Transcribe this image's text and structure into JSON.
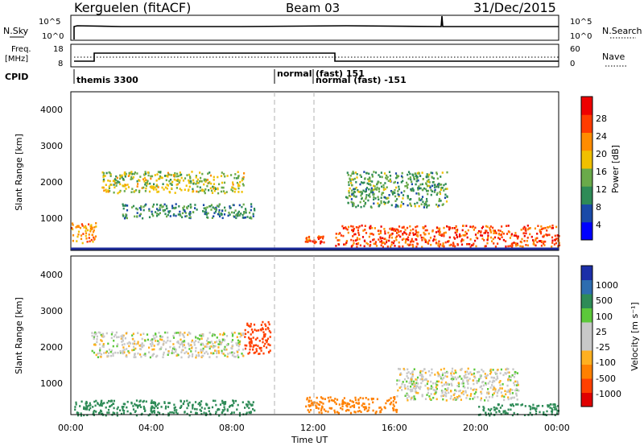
{
  "header": {
    "station": "Kerguelen (fitACF)",
    "beam": "Beam 03",
    "date": "31/Dec/2015"
  },
  "panels": {
    "nsky": {
      "label": "N.Sky",
      "ticks": [
        "10^5",
        "10^0"
      ],
      "right_label": "N.Search",
      "right_ticks": [
        "10^5",
        "10^0"
      ]
    },
    "freq": {
      "label_1": "Freq.",
      "label_2": "[MHz]",
      "ticks": [
        "18",
        "8"
      ],
      "right_label": "Nave",
      "right_ticks": [
        "60",
        "0"
      ]
    },
    "cpid": {
      "label": "CPID",
      "segments": [
        {
          "name": "themis 3300",
          "start_h": 0
        },
        {
          "name": "normal",
          "start_h": 10.0
        },
        {
          "name": "(fast) 151",
          "start_h": 12.0
        },
        {
          "name": "normal (fast) -151",
          "start_h": 12.0
        }
      ]
    }
  },
  "colorbars": {
    "power": {
      "title": "Power [dB]",
      "colors": [
        "#0000ff",
        "#1a4aa8",
        "#2e8b57",
        "#6aaa4a",
        "#f0c000",
        "#ff8c00",
        "#ff3c00",
        "#ee0000"
      ],
      "ticks": [
        "28",
        "24",
        "20",
        "16",
        "12",
        "8",
        "4"
      ]
    },
    "velocity": {
      "title": "Velocity [m s⁻¹]",
      "colors": [
        "#1c2fa8",
        "#2e6db0",
        "#2e8b57",
        "#5cc83a",
        "#c8c8c8",
        "#c8c8c8",
        "#ffb020",
        "#ff8000",
        "#ff4000",
        "#e00000"
      ],
      "ticks": [
        "1000",
        "500",
        "100",
        "25",
        "-25",
        "-100",
        "-500",
        "-1000"
      ]
    }
  },
  "axes": {
    "ylabel": "Slant Range [km]",
    "yticks": [
      "4000",
      "3000",
      "2000",
      "1000"
    ],
    "xticks": [
      "00:00",
      "04:00",
      "08:00",
      "12:00",
      "16:00",
      "20:00",
      "00:00"
    ],
    "xlabel": "Time UT"
  },
  "chart_data": [
    {
      "type": "heatmap",
      "title": "Power [dB]",
      "x_unit": "hours UT",
      "y_unit": "km",
      "xlim": [
        0,
        24
      ],
      "ylim": [
        180,
        4600
      ],
      "features": [
        {
          "x": [
            0,
            1.2
          ],
          "y": [
            400,
            1000
          ],
          "value": 22
        },
        {
          "x": [
            1.5,
            8.5
          ],
          "y": [
            1800,
            2400
          ],
          "value": 16
        },
        {
          "x": [
            2.5,
            9.0
          ],
          "y": [
            1100,
            1500
          ],
          "value": 10
        },
        {
          "x": [
            11.5,
            12.5
          ],
          "y": [
            400,
            600
          ],
          "value": 24
        },
        {
          "x": [
            13.0,
            24.0
          ],
          "y": [
            300,
            900
          ],
          "value": 26
        },
        {
          "x": [
            13.5,
            18.5
          ],
          "y": [
            1400,
            2400
          ],
          "value": 12
        }
      ]
    },
    {
      "type": "heatmap",
      "title": "Velocity [m s⁻¹]",
      "x_unit": "hours UT",
      "y_unit": "km",
      "xlim": [
        0,
        24
      ],
      "ylim": [
        180,
        4600
      ],
      "features": [
        {
          "x": [
            1.0,
            8.5
          ],
          "y": [
            1800,
            2500
          ],
          "value": 0
        },
        {
          "x": [
            8.5,
            9.8
          ],
          "y": [
            1900,
            2800
          ],
          "value": -500
        },
        {
          "x": [
            0,
            9.0
          ],
          "y": [
            180,
            600
          ],
          "value": 150
        },
        {
          "x": [
            11.5,
            16.0
          ],
          "y": [
            250,
            700
          ],
          "value": -100
        },
        {
          "x": [
            16.0,
            22.0
          ],
          "y": [
            600,
            1500
          ],
          "value": 0
        },
        {
          "x": [
            20.0,
            24.0
          ],
          "y": [
            180,
            500
          ],
          "value": 100
        }
      ]
    }
  ]
}
